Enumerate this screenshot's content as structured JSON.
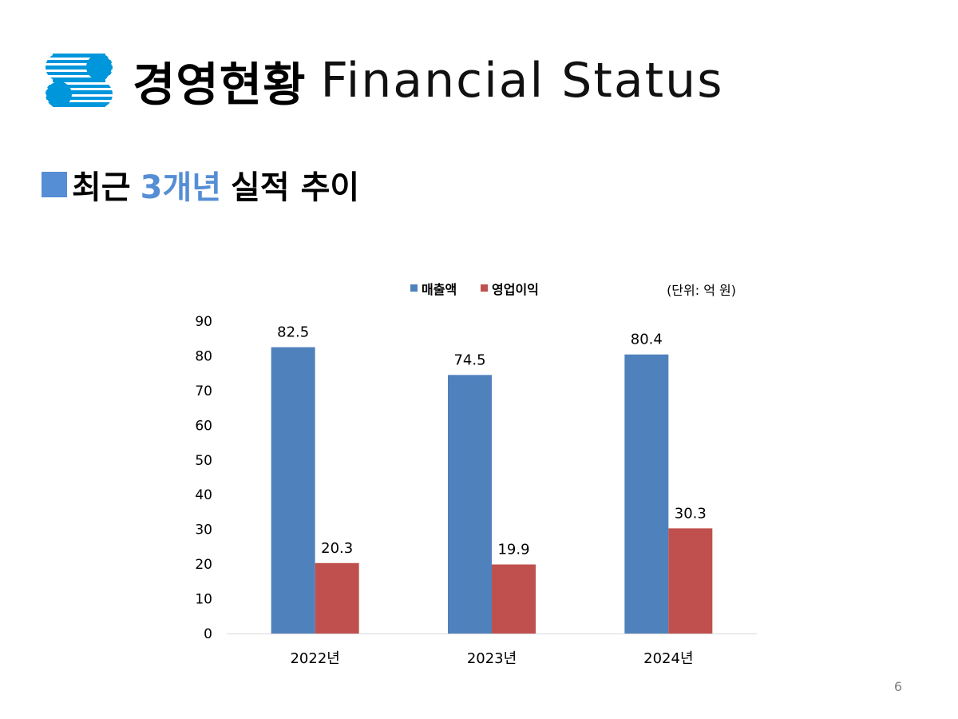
{
  "header": {
    "title_ko": "경영현황",
    "title_en": "Financial Status"
  },
  "section": {
    "marker": "■",
    "part1": "최근",
    "highlight": "3개년",
    "part2": "실적 추이"
  },
  "page_number": "6",
  "colors": {
    "accent": "#558ed5",
    "sales": "#4f81bd",
    "operating_profit": "#c0504d",
    "logo": "#0096dc"
  },
  "chart_data": {
    "type": "bar",
    "categories": [
      "2022년",
      "2023년",
      "2024년"
    ],
    "series": [
      {
        "name": "매출액",
        "values": [
          82.5,
          74.5,
          80.4
        ],
        "color": "#4f81bd"
      },
      {
        "name": "영업이익",
        "values": [
          20.3,
          19.9,
          30.3
        ],
        "color": "#c0504d"
      }
    ],
    "unit_note": "(단위: 억 원)",
    "ylim": [
      0,
      90
    ],
    "yticks": [
      0,
      10,
      20,
      30,
      40,
      50,
      60,
      70,
      80,
      90
    ],
    "grid": false,
    "legend": "top",
    "data_labels": true
  }
}
